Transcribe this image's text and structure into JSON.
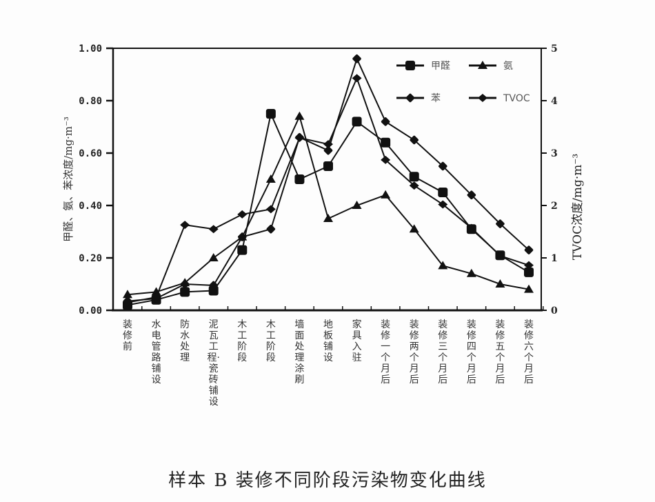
{
  "caption": "样本 B 装修不同阶段污染物变化曲线",
  "chart_data": {
    "type": "line",
    "title": "样本 B 装修不同阶段污染物变化曲线",
    "categories": [
      "装修前",
      "水电管路铺设",
      "防水处理",
      "泥瓦工程·瓷砖铺设",
      "木工阶段",
      "木工阶段",
      "墙面处理涂刷",
      "地板铺设",
      "家具入驻",
      "装修一个月后",
      "装修两个月后",
      "装修三个月后",
      "装修四个月后",
      "装修五个月后",
      "装修六个月后"
    ],
    "ylabel_left": "甲醛、氨、苯浓度/mg·m⁻³",
    "ylabel_right": "TVOC浓度/mg·m⁻³",
    "ylim_left": [
      0,
      1.0
    ],
    "ylim_right": [
      0,
      5
    ],
    "yticks_left": [
      "0.00",
      "0.20",
      "0.40",
      "0.60",
      "0.80",
      "1.00"
    ],
    "yticks_right": [
      "0",
      "1",
      "2",
      "3",
      "4",
      "5"
    ],
    "legend_position": "upper right",
    "series": [
      {
        "name": "甲醛",
        "axis": "left",
        "marker": "large-square",
        "values": [
          0.02,
          0.04,
          0.07,
          0.075,
          0.23,
          0.75,
          0.5,
          0.55,
          0.72,
          0.64,
          0.51,
          0.45,
          0.31,
          0.21,
          0.145
        ]
      },
      {
        "name": "氨",
        "axis": "left",
        "marker": "triangle",
        "values": [
          0.06,
          0.07,
          0.105,
          0.2,
          0.28,
          0.5,
          0.74,
          0.35,
          0.4,
          0.44,
          0.31,
          0.17,
          0.14,
          0.1,
          0.08
        ]
      },
      {
        "name": "苯",
        "axis": "left",
        "marker": "small-square",
        "values": [
          0.035,
          0.045,
          0.1,
          0.095,
          0.28,
          0.31,
          0.66,
          0.61,
          0.96,
          0.72,
          0.65,
          0.55,
          0.44,
          0.33,
          0.23
        ]
      },
      {
        "name": "TVOC",
        "axis": "right",
        "marker": "diamond",
        "values": [
          0.15,
          0.25,
          1.63,
          1.55,
          1.83,
          1.93,
          3.29,
          3.17,
          4.43,
          2.87,
          2.38,
          2.02,
          1.57,
          1.04,
          0.86
        ]
      }
    ]
  }
}
